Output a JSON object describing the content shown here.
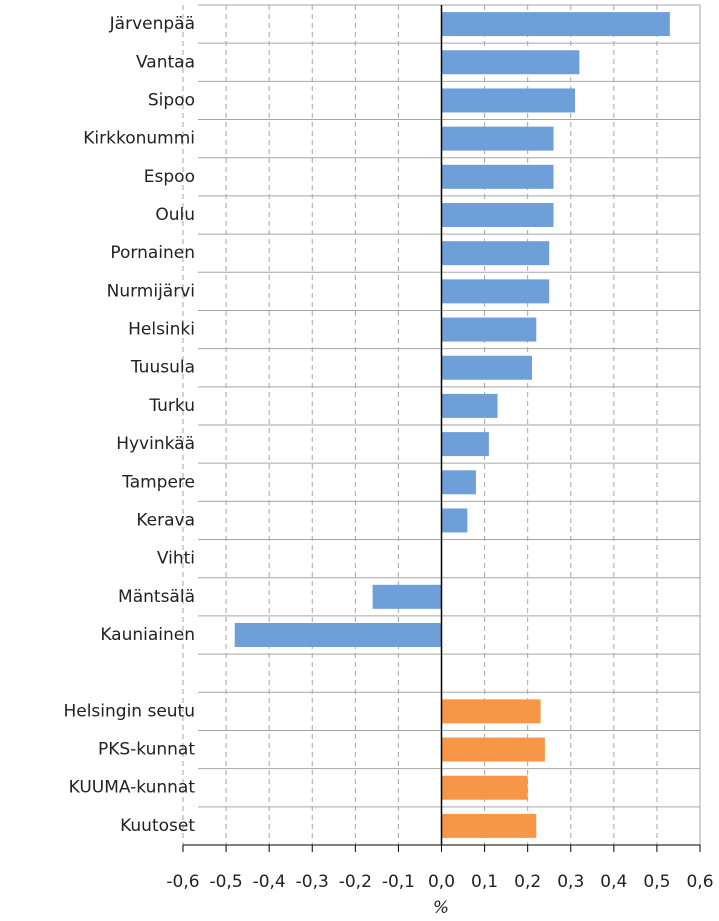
{
  "chart_data": {
    "type": "bar",
    "orientation": "horizontal",
    "x_label": "%",
    "categories": [
      "Järvenpää",
      "Vantaa",
      "Sipoo",
      "Kirkkonummi",
      "Espoo",
      "Oulu",
      "Pornainen",
      "Nurmijärvi",
      "Helsinki",
      "Tuusula",
      "Turku",
      "Hyvinkää",
      "Tampere",
      "Kerava",
      "Vihti",
      "Mäntsälä",
      "Kauniainen",
      null,
      "Helsingin seutu",
      "PKS-kunnat",
      "KUUMA-kunnat",
      "Kuutoset"
    ],
    "values": [
      0.53,
      0.32,
      0.31,
      0.26,
      0.26,
      0.26,
      0.25,
      0.25,
      0.22,
      0.21,
      0.13,
      0.11,
      0.08,
      0.06,
      0,
      -0.16,
      -0.48,
      null,
      0.23,
      0.24,
      0.2,
      0.22
    ],
    "colors": [
      "#6f9fd8",
      "#6f9fd8",
      "#6f9fd8",
      "#6f9fd8",
      "#6f9fd8",
      "#6f9fd8",
      "#6f9fd8",
      "#6f9fd8",
      "#6f9fd8",
      "#6f9fd8",
      "#6f9fd8",
      "#6f9fd8",
      "#6f9fd8",
      "#6f9fd8",
      "#6f9fd8",
      "#6f9fd8",
      "#6f9fd8",
      null,
      "#f79646",
      "#f79646",
      "#f79646",
      "#f79646"
    ],
    "xlim": [
      -0.6,
      0.6
    ],
    "xticks": [
      {
        "value": -0.6,
        "label": "-0,6"
      },
      {
        "value": -0.5,
        "label": "-0,5"
      },
      {
        "value": -0.4,
        "label": "-0,4"
      },
      {
        "value": -0.3,
        "label": "-0,3"
      },
      {
        "value": -0.2,
        "label": "-0,2"
      },
      {
        "value": -0.1,
        "label": "-0,1"
      },
      {
        "value": 0,
        "label": "0,0"
      },
      {
        "value": 0.1,
        "label": "0,1"
      },
      {
        "value": 0.2,
        "label": "0,2"
      },
      {
        "value": 0.3,
        "label": "0,3"
      },
      {
        "value": 0.4,
        "label": "0,4"
      },
      {
        "value": 0.5,
        "label": "0,5"
      },
      {
        "value": 0.6,
        "label": "0,6"
      }
    ],
    "grid": true
  }
}
